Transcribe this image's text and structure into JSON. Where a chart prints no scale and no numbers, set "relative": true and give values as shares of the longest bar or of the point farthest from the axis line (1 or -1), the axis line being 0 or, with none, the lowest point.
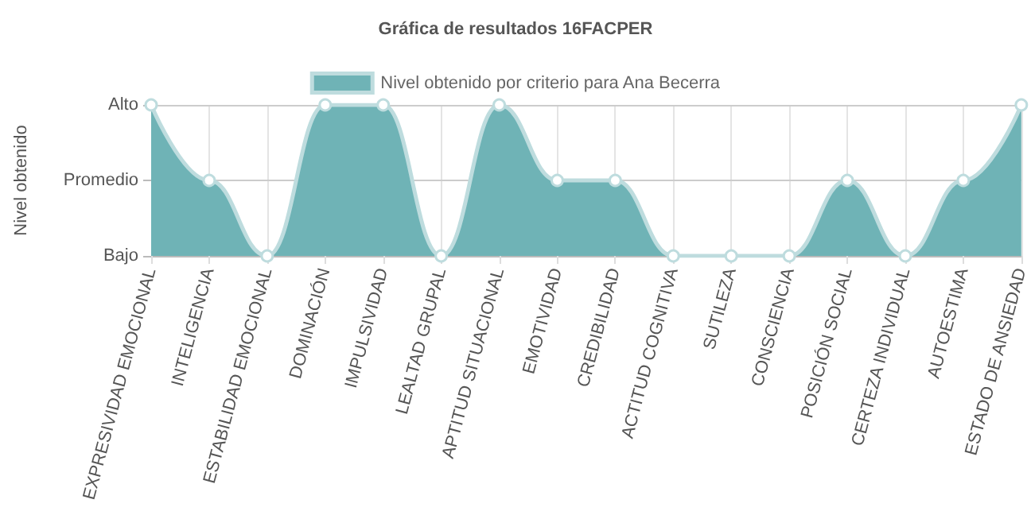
{
  "chart_data": {
    "type": "area",
    "title": "Gráfica de resultados 16FACPER",
    "ylabel": "Nivel obtenido",
    "categories": [
      "EXPRESIVIDAD EMOCIONAL",
      "INTELIGENCIA",
      "ESTABILIDAD EMOCIONAL",
      "DOMINACIÓN",
      "IMPULSIVIDAD",
      "LEALTAD GRUPAL",
      "APTITUD SITUACIONAL",
      "EMOTIVIDAD",
      "CREDIBILIDAD",
      "ACTITUD COGNITIVA",
      "SUTILEZA",
      "CONSCIENCIA",
      "POSICIÓN SOCIAL",
      "CERTEZA INDIVIDUAL",
      "AUTOESTIMA",
      "ESTADO DE ANSIEDAD"
    ],
    "y_categories": [
      "Alto",
      "Promedio",
      "Bajo"
    ],
    "relative": true,
    "series": [
      {
        "name": "Nivel obtenido por criterio para Ana Becerra",
        "color": "#6fb3b6",
        "values": [
          1,
          0.5,
          0,
          1,
          1,
          0,
          1,
          0.5,
          0.5,
          0,
          0,
          0,
          0.5,
          0,
          0.5,
          1
        ]
      }
    ],
    "ref_lines": [
      {
        "axis": "y",
        "value": 0.5,
        "color": "#cccccc"
      },
      {
        "axis": "y",
        "value": 1,
        "color": "#cccccc"
      }
    ],
    "grid": "x",
    "legend": "top",
    "marker": "circle",
    "line_style": "solid"
  }
}
